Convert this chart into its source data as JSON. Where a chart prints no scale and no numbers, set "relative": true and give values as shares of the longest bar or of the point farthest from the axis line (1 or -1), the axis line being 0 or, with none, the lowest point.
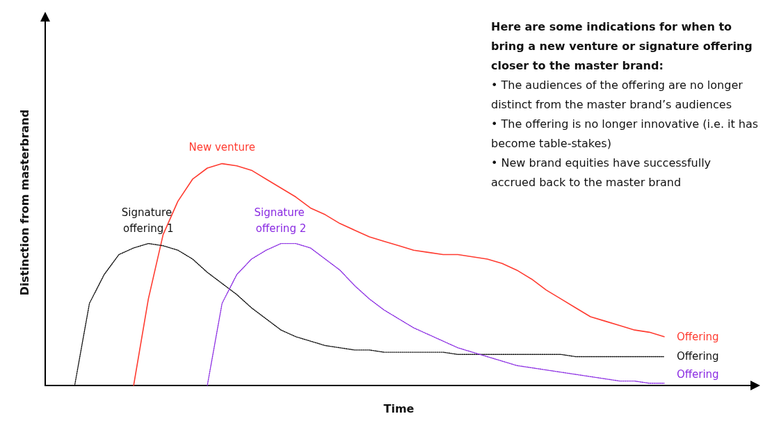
{
  "chart_data": {
    "type": "line",
    "relative": true,
    "xlabel": "Time",
    "ylabel": "Distinction from masterbrand",
    "legend": false,
    "grid": false,
    "marker": "none",
    "categories": [
      null,
      null,
      null,
      null,
      null,
      null,
      null,
      null,
      null,
      null,
      null,
      null,
      null,
      null,
      null,
      null,
      null,
      null,
      null,
      null,
      null,
      null,
      null,
      null,
      null,
      null,
      null,
      null,
      null,
      null,
      null,
      null,
      null,
      null,
      null,
      null,
      null,
      null,
      null,
      null,
      null,
      null,
      null,
      null,
      null,
      null,
      null,
      null,
      null
    ],
    "series": [
      {
        "name": "New venture",
        "color": "#ff3b30",
        "line_style": "solid",
        "values": [
          null,
          null,
          null,
          null,
          null,
          null,
          0,
          0.39,
          0.68,
          0.83,
          0.93,
          0.98,
          1,
          0.99,
          0.97,
          0.93,
          0.89,
          0.85,
          0.8,
          0.77,
          0.73,
          0.7,
          0.67,
          0.65,
          0.63,
          0.61,
          0.6,
          0.59,
          0.59,
          0.58,
          0.57,
          0.55,
          0.52,
          0.48,
          0.43,
          0.39,
          0.35,
          0.31,
          0.29,
          0.27,
          0.25,
          0.24,
          0.22,
          null,
          null,
          null,
          null,
          null,
          null
        ]
      },
      {
        "name": "Signature offering 1",
        "color": "#111111",
        "line_style": "dotted",
        "values": [
          null,
          null,
          0,
          0.37,
          0.5,
          0.59,
          0.62,
          0.64,
          0.63,
          0.61,
          0.57,
          0.51,
          0.46,
          0.41,
          0.35,
          0.3,
          0.25,
          0.22,
          0.2,
          0.18,
          0.17,
          0.16,
          0.16,
          0.15,
          0.15,
          0.15,
          0.15,
          0.15,
          0.14,
          0.14,
          0.14,
          0.14,
          0.14,
          0.14,
          0.14,
          0.14,
          0.13,
          0.13,
          0.13,
          0.13,
          0.13,
          0.13,
          0.13,
          null,
          null,
          null,
          null,
          null,
          null
        ]
      },
      {
        "name": "Signature offering 2",
        "color": "#8a2be2",
        "line_style": "dotted",
        "values": [
          null,
          null,
          null,
          null,
          null,
          null,
          null,
          null,
          null,
          null,
          null,
          0,
          0.37,
          0.5,
          0.57,
          0.61,
          0.64,
          0.64,
          0.62,
          0.57,
          0.52,
          0.45,
          0.39,
          0.34,
          0.3,
          0.26,
          0.23,
          0.2,
          0.17,
          0.15,
          0.13,
          0.11,
          0.09,
          0.08,
          0.07,
          0.06,
          0.05,
          0.04,
          0.03,
          0.02,
          0.02,
          0.01,
          0.01,
          null,
          null,
          null,
          null,
          null,
          null
        ]
      }
    ],
    "annotations": [
      "Here are some indications for when to bring a new venture or signature offering closer to the master brand:",
      "• The audiences of the offering are no longer distinct from the master brand’s audiences",
      "• The offering is no longer innovative (i.e. it has become table-stakes)",
      "• New brand equities have successfully accrued back to the master brand",
      "Offering",
      "Offering",
      "Offering"
    ]
  }
}
